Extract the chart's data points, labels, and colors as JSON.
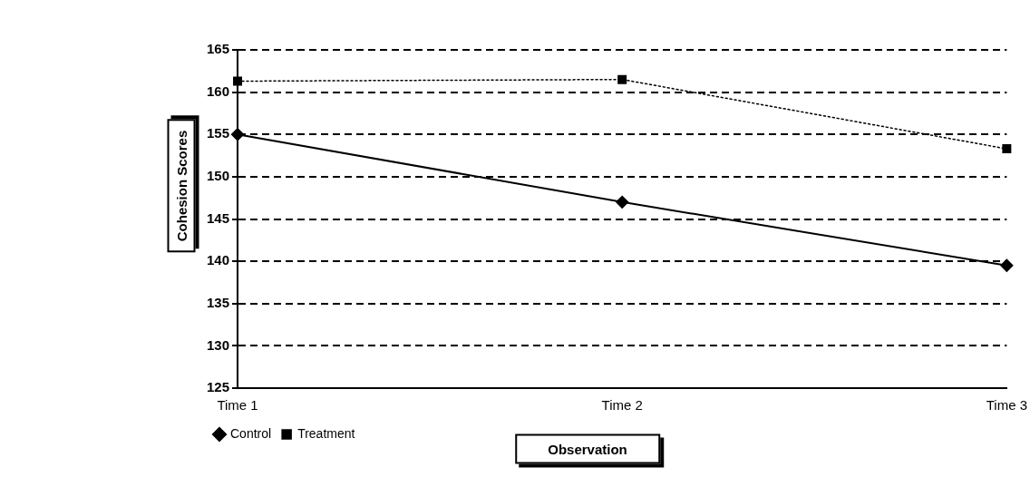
{
  "chart_data": {
    "type": "line",
    "xlabel": "Observation",
    "ylabel": "Cohesion Scores",
    "categories": [
      "Time 1",
      "Time 2",
      "Time 3"
    ],
    "series": [
      {
        "name": "Control",
        "color": "#000000",
        "values": [
          155,
          147,
          139.5
        ],
        "marker": "diamond",
        "line_style": "solid"
      },
      {
        "name": "Treatment",
        "color": "#000000",
        "values": [
          161.3,
          161.5,
          153.3
        ],
        "marker": "square",
        "line_style": "dotted"
      }
    ],
    "ylim": [
      125,
      165
    ],
    "yticks": [
      125,
      130,
      135,
      140,
      145,
      150,
      155,
      160,
      165
    ],
    "grid": "y",
    "legend": "bottom left"
  }
}
